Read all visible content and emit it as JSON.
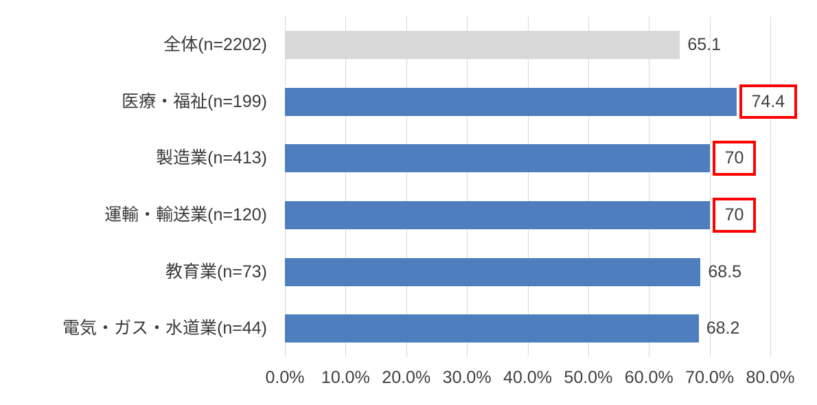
{
  "chart_data": {
    "type": "bar",
    "orientation": "horizontal",
    "title": "",
    "xlabel": "",
    "ylabel": "",
    "categories": [
      "全体(n=2202)",
      "医療・福祉(n=199)",
      "製造業(n=413)",
      "運輸・輸送業(n=120)",
      "教育業(n=73)",
      "電気・ガス・水道業(n=44)"
    ],
    "values": [
      65.1,
      74.4,
      70,
      70,
      68.5,
      68.2
    ],
    "value_labels": [
      "65.1",
      "74.4",
      "70",
      "70",
      "68.5",
      "68.2"
    ],
    "highlighted": [
      false,
      true,
      true,
      true,
      false,
      false
    ],
    "bar_colors": [
      "#D8D8D8",
      "#4E7EBD",
      "#4E7EBD",
      "#4E7EBD",
      "#4E7EBD",
      "#4E7EBD"
    ],
    "x_tick_labels": [
      "0.0%",
      "10.0%",
      "20.0%",
      "30.0%",
      "40.0%",
      "50.0%",
      "60.0%",
      "70.0%",
      "80.0%"
    ],
    "xlim": [
      0,
      80
    ],
    "grid": "vertical-gridlines-on",
    "legend": "none",
    "colors": {
      "bar_default": "#4E7EBD",
      "bar_total": "#D8D8D8",
      "highlight_box": "#FF0000",
      "gridline": "#D9D9D9",
      "text": "#3F3F3F",
      "background": "#FFFFFF"
    }
  }
}
